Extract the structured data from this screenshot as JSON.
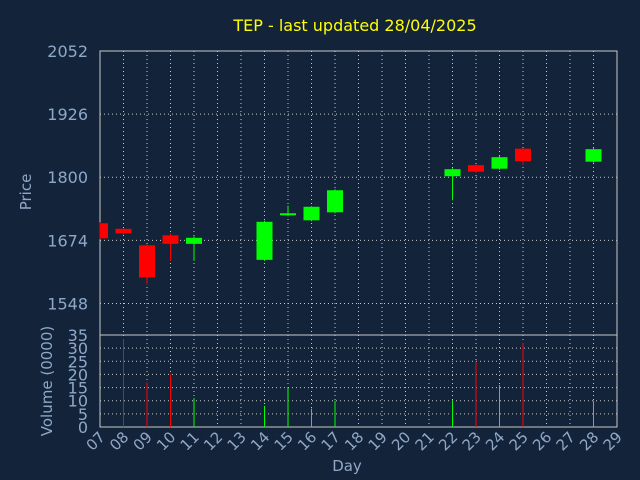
{
  "colors": {
    "background": "#13243a",
    "plot_background": "#13243a",
    "grid": "#c8c8c8",
    "axis_text": "#8fa8c8",
    "title": "#ffff00",
    "up": "#00ff00",
    "down": "#ff0000"
  },
  "chart_data": [
    {
      "type": "candlestick",
      "title": "TEP - last updated 28/04/2025",
      "ylabel": "Price",
      "xlabel": "",
      "ylim": [
        1485,
        2052
      ],
      "yticks": [
        1548,
        1674,
        1800,
        1926,
        2052
      ],
      "x_ticks": [
        "07",
        "08",
        "09",
        "10",
        "11",
        "12",
        "13",
        "14",
        "15",
        "16",
        "17",
        "18",
        "19",
        "20",
        "21",
        "22",
        "23",
        "24",
        "25",
        "26",
        "27",
        "28",
        "29"
      ],
      "grid": true,
      "candles": [
        {
          "day": "07",
          "open": 1708,
          "close": 1678,
          "high": 1710,
          "low": 1676
        },
        {
          "day": "08",
          "open": 1697,
          "close": 1688,
          "high": 1698,
          "low": 1686
        },
        {
          "day": "09",
          "open": 1664,
          "close": 1600,
          "high": 1666,
          "low": 1586
        },
        {
          "day": "10",
          "open": 1684,
          "close": 1667,
          "high": 1688,
          "low": 1633
        },
        {
          "day": "11",
          "open": 1667,
          "close": 1679,
          "high": 1682,
          "low": 1633
        },
        {
          "day": "14",
          "open": 1635,
          "close": 1711,
          "high": 1713,
          "low": 1633
        },
        {
          "day": "15",
          "open": 1724,
          "close": 1728,
          "high": 1743,
          "low": 1722
        },
        {
          "day": "16",
          "open": 1714,
          "close": 1741,
          "high": 1742,
          "low": 1712
        },
        {
          "day": "17",
          "open": 1730,
          "close": 1774,
          "high": 1776,
          "low": 1728
        },
        {
          "day": "22",
          "open": 1802,
          "close": 1816,
          "high": 1818,
          "low": 1754
        },
        {
          "day": "23",
          "open": 1824,
          "close": 1811,
          "high": 1826,
          "low": 1809
        },
        {
          "day": "24",
          "open": 1817,
          "close": 1840,
          "high": 1842,
          "low": 1815
        },
        {
          "day": "25",
          "open": 1857,
          "close": 1832,
          "high": 1858,
          "low": 1825
        },
        {
          "day": "28",
          "open": 1831,
          "close": 1856,
          "high": 1858,
          "low": 1829
        }
      ]
    },
    {
      "type": "bar",
      "ylabel": "Volume (0000)",
      "xlabel": "Day",
      "ylim": [
        0,
        35
      ],
      "yticks": [
        0,
        5,
        10,
        15,
        20,
        25,
        30,
        35
      ],
      "grid": true,
      "bars": [
        {
          "day": "08",
          "value": 33.5,
          "direction": "down"
        },
        {
          "day": "09",
          "value": 17,
          "direction": "down"
        },
        {
          "day": "10",
          "value": 20,
          "direction": "down"
        },
        {
          "day": "11",
          "value": 11,
          "direction": "up"
        },
        {
          "day": "14",
          "value": 8,
          "direction": "up"
        },
        {
          "day": "15",
          "value": 15,
          "direction": "up"
        },
        {
          "day": "16",
          "value": 7,
          "direction": "up"
        },
        {
          "day": "17",
          "value": 10,
          "direction": "up"
        },
        {
          "day": "22",
          "value": 10,
          "direction": "up"
        },
        {
          "day": "23",
          "value": 25,
          "direction": "down"
        },
        {
          "day": "24",
          "value": 16,
          "direction": "up"
        },
        {
          "day": "25",
          "value": 32,
          "direction": "down"
        },
        {
          "day": "28",
          "value": 10,
          "direction": "up"
        }
      ]
    }
  ]
}
